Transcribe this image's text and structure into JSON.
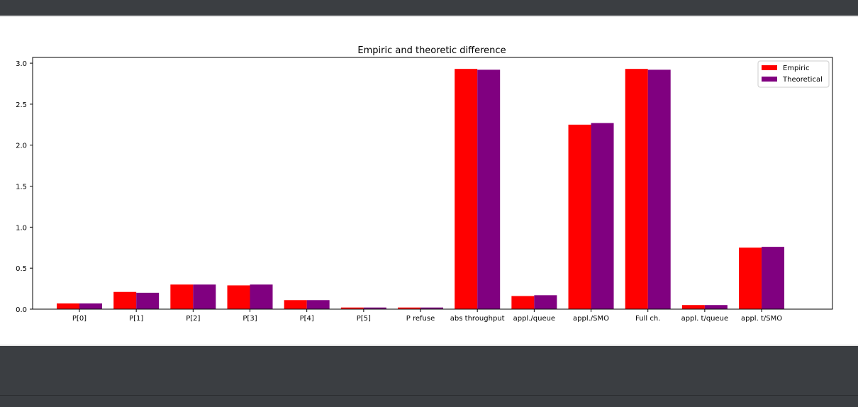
{
  "chart_data": {
    "type": "bar",
    "title": "Empiric and theoretic difference",
    "xlabel": "",
    "ylabel": "",
    "ylim": [
      0,
      3.07
    ],
    "yticks": [
      "0.0",
      "0.5",
      "1.0",
      "1.5",
      "2.0",
      "2.5",
      "3.0"
    ],
    "categories": [
      "P[0]",
      "P[1]",
      "P[2]",
      "P[3]",
      "P[4]",
      "P[5]",
      "P refuse",
      "abs throughput",
      "appl./queue",
      "appl./SMO",
      "Full ch.",
      "appl. t/queue",
      "appl. t/SMO"
    ],
    "series": [
      {
        "name": "Empiric",
        "color": "#ff0000",
        "values": [
          0.07,
          0.21,
          0.3,
          0.29,
          0.11,
          0.02,
          0.02,
          2.93,
          0.16,
          2.25,
          2.93,
          0.05,
          0.75
        ]
      },
      {
        "name": "Theoretical",
        "color": "#800080",
        "values": [
          0.07,
          0.2,
          0.3,
          0.3,
          0.11,
          0.02,
          0.02,
          2.92,
          0.17,
          2.27,
          2.92,
          0.05,
          0.76
        ]
      }
    ],
    "legend": "top-right",
    "grid": false
  }
}
